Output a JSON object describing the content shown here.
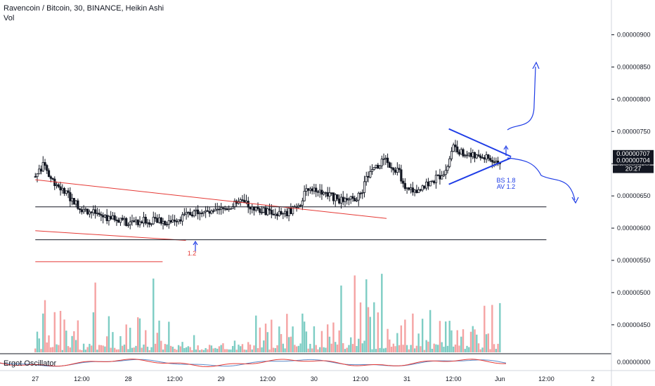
{
  "header": {
    "title": "Ravencoin / Bitcoin, 30, BINANCE, Heikin Ashi",
    "volume_label": "Vol"
  },
  "oscillator": {
    "label": "Ergot Oscillator",
    "tick": "0.00000000"
  },
  "price_badges": [
    {
      "value": "0.00000707",
      "bg": "#131722"
    },
    {
      "value": "0.00000704",
      "bg": "#131722"
    },
    {
      "value": "20:27",
      "bg": "#131722"
    }
  ],
  "annotations": {
    "left_arrow_label": "1.2",
    "triangle_label_line1": "BS 1.8",
    "triangle_label_line2": "AV 1.2"
  },
  "colors": {
    "candle": "#131722",
    "vol_up": "#7ecdc4",
    "vol_down": "#f5a3a3",
    "trendline_red": "#e53935",
    "drawing_blue": "#1e3ce6",
    "support_line": "#131722",
    "osc_red": "#e53935",
    "osc_blue": "#5b8ac8"
  },
  "chart_data": {
    "type": "candlestick",
    "title": "Ravencoin / Bitcoin, 30, BINANCE, Heikin Ashi",
    "x_ticks": [
      "27",
      "12:00",
      "28",
      "12:00",
      "29",
      "12:00",
      "30",
      "12:00",
      "31",
      "12:00",
      "Jun",
      "12:00",
      "2"
    ],
    "y_ticks": [
      "0.00000900",
      "0.00000850",
      "0.00000800",
      "0.00000750",
      "0.00000700",
      "0.00000650",
      "0.00000600",
      "0.00000550",
      "0.00000500",
      "0.00000450"
    ],
    "ylim": [
      4.4e-06,
      9.3e-06
    ],
    "last_price": 7.04e-06,
    "price_path": [
      [
        27.0,
        6.8e-06
      ],
      [
        27.05,
        6.9e-06
      ],
      [
        27.1,
        7e-06
      ],
      [
        27.15,
        6.8e-06
      ],
      [
        27.25,
        6.65e-06
      ],
      [
        27.35,
        6.5e-06
      ],
      [
        27.5,
        6.3e-06
      ],
      [
        27.7,
        6.2e-06
      ],
      [
        27.9,
        6.12e-06
      ],
      [
        28.0,
        6.08e-06
      ],
      [
        28.2,
        6.12e-06
      ],
      [
        28.4,
        6.1e-06
      ],
      [
        28.6,
        6.18e-06
      ],
      [
        28.75,
        6.28e-06
      ],
      [
        28.9,
        6.22e-06
      ],
      [
        29.0,
        6.28e-06
      ],
      [
        29.2,
        6.4e-06
      ],
      [
        29.35,
        6.32e-06
      ],
      [
        29.5,
        6.25e-06
      ],
      [
        29.7,
        6.22e-06
      ],
      [
        29.85,
        6.4e-06
      ],
      [
        29.95,
        6.65e-06
      ],
      [
        30.05,
        6.6e-06
      ],
      [
        30.2,
        6.48e-06
      ],
      [
        30.35,
        6.4e-06
      ],
      [
        30.5,
        6.52e-06
      ],
      [
        30.6,
        6.9e-06
      ],
      [
        30.75,
        7.05e-06
      ],
      [
        30.9,
        6.9e-06
      ],
      [
        31.0,
        6.6e-06
      ],
      [
        31.1,
        6.52e-06
      ],
      [
        31.2,
        6.65e-06
      ],
      [
        31.35,
        6.8e-06
      ],
      [
        31.45,
        7e-06
      ],
      [
        31.5,
        7.3e-06
      ],
      [
        31.6,
        7.15e-06
      ],
      [
        31.75,
        7.1e-06
      ],
      [
        31.9,
        7.08e-06
      ],
      [
        32.0,
        7.04e-06
      ]
    ],
    "lines": [
      {
        "name": "descending-trendline",
        "points": [
          [
            27.0,
            6.75e-06
          ],
          [
            30.78,
            6.15e-06
          ]
        ]
      },
      {
        "name": "lower-trendline",
        "points": [
          [
            27.0,
            5.96e-06
          ],
          [
            28.62,
            5.81e-06
          ]
        ]
      },
      {
        "name": "short-red-line",
        "points": [
          [
            27.0,
            5.48e-06
          ],
          [
            28.37,
            5.48e-06
          ]
        ]
      },
      {
        "name": "support-upper",
        "points": [
          [
            27.0,
            6.33e-06
          ],
          [
            32.5,
            6.33e-06
          ]
        ]
      },
      {
        "name": "support-lower",
        "points": [
          [
            27.0,
            5.82e-06
          ],
          [
            32.5,
            5.82e-06
          ]
        ]
      }
    ],
    "triangle": {
      "upper": [
        [
          31.45,
          7.54e-06
        ],
        [
          32.12,
          7.11e-06
        ]
      ],
      "lower": [
        [
          31.45,
          6.68e-06
        ],
        [
          32.12,
          7.09e-06
        ]
      ]
    }
  }
}
